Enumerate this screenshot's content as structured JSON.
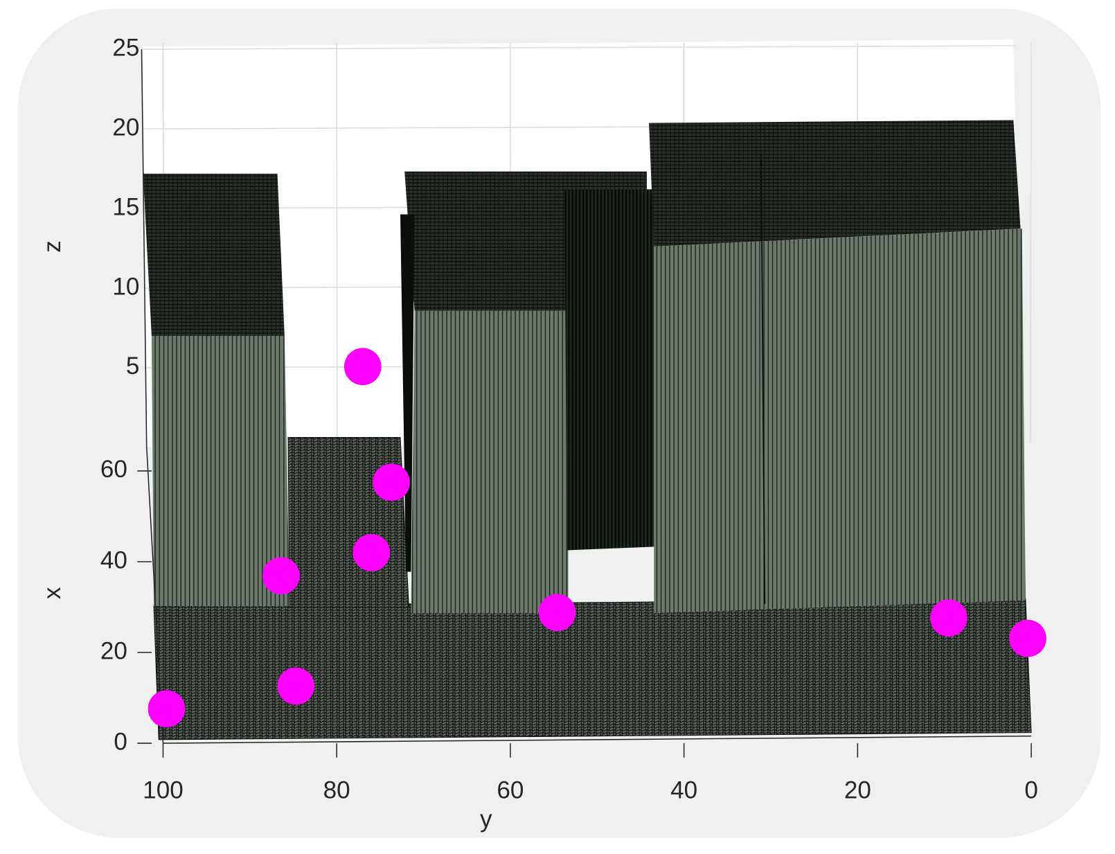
{
  "chart_data": {
    "type": "scatter3d",
    "xlabel": "x",
    "ylabel": "y",
    "zlabel": "z",
    "ylim": [
      0,
      100
    ],
    "yticks": [
      0,
      20,
      40,
      60,
      80,
      100
    ],
    "xlim": [
      0,
      100
    ],
    "xticks": [
      0,
      20,
      40,
      60
    ],
    "zlim": [
      0,
      25
    ],
    "zticks": [
      5,
      10,
      15,
      20,
      25
    ],
    "grid": true,
    "series": [
      {
        "color": "#ff00ff",
        "y": [
          99.6,
          84.7,
          86.4,
          76.0,
          73.7,
          77.0,
          54.6,
          9.5,
          0.4
        ],
        "x": [
          7.6,
          12.6,
          36.9,
          42.0,
          57.5,
          83.0,
          28.8,
          27.6,
          23.1
        ]
      }
    ]
  }
}
